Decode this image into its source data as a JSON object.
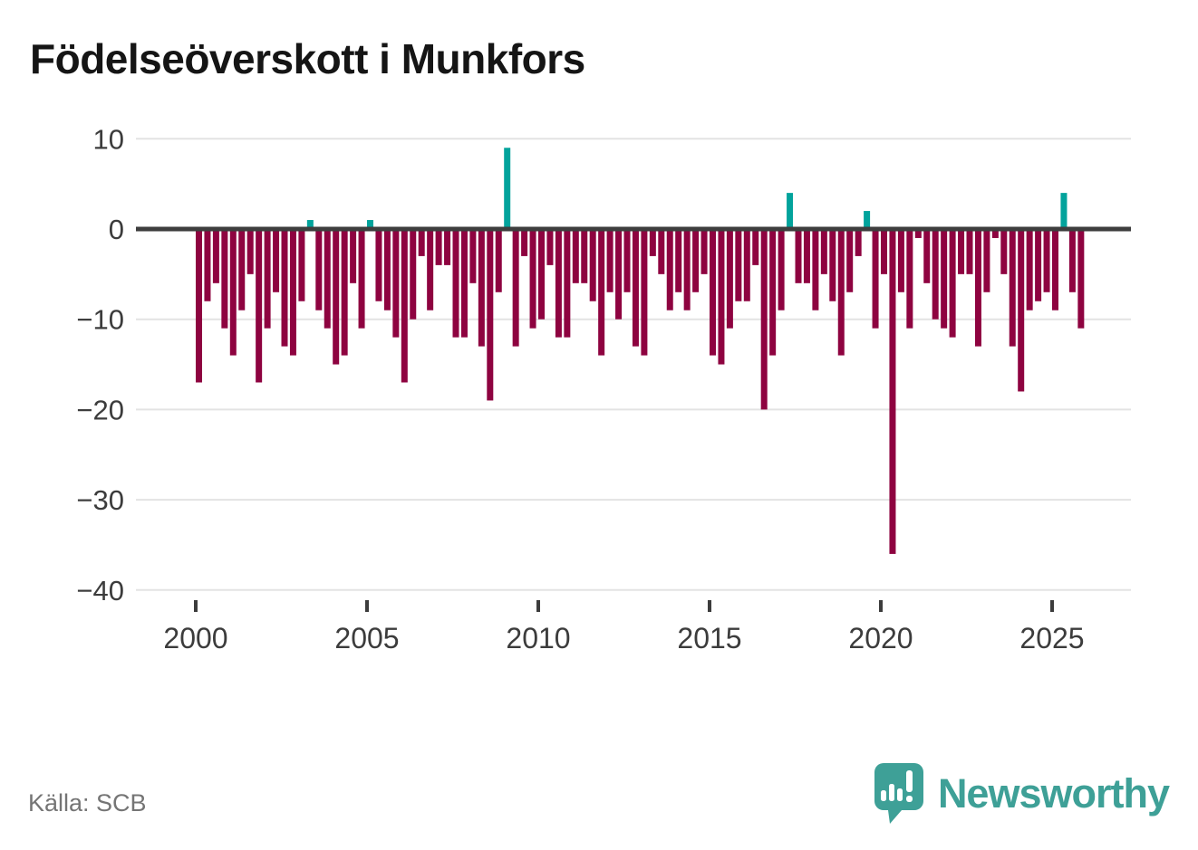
{
  "title": "Födelseöverskott i Munkfors",
  "source": {
    "label": "Källa: SCB"
  },
  "branding": {
    "wordmark": "Newsworthy"
  },
  "chart_data": {
    "type": "bar",
    "title": "Födelseöverskott i Munkfors",
    "frequency": "quarterly",
    "start_period": "2000-Q1",
    "end_period": "2025-Q4",
    "values": [
      -17,
      -8,
      -6,
      -11,
      -14,
      -9,
      -5,
      -17,
      -11,
      -7,
      -13,
      -14,
      -8,
      1,
      -9,
      -11,
      -15,
      -14,
      -6,
      -11,
      1,
      -8,
      -9,
      -12,
      -17,
      -10,
      -3,
      -9,
      -4,
      -4,
      -12,
      -12,
      -6,
      -13,
      -19,
      -7,
      9,
      -13,
      -3,
      -11,
      -10,
      -4,
      -12,
      -12,
      -6,
      -6,
      -8,
      -14,
      -7,
      -10,
      -7,
      -13,
      -14,
      -3,
      -5,
      -9,
      -7,
      -9,
      -7,
      -5,
      -14,
      -15,
      -11,
      -8,
      -8,
      -4,
      -20,
      -14,
      -9,
      4,
      -6,
      -6,
      -9,
      -5,
      -8,
      -14,
      -7,
      -3,
      2,
      -11,
      -5,
      -36,
      -7,
      -11,
      -1,
      -6,
      -10,
      -11,
      -12,
      -5,
      -5,
      -13,
      -7,
      -1,
      -5,
      -13,
      -18,
      -9,
      -8,
      -7,
      -9,
      4,
      -7,
      -11
    ],
    "y_ticks": [
      {
        "value": 10,
        "label": "10"
      },
      {
        "value": 0,
        "label": "0"
      },
      {
        "value": -10,
        "label": "−10"
      },
      {
        "value": -20,
        "label": "−20"
      },
      {
        "value": -30,
        "label": "−30"
      },
      {
        "value": -40,
        "label": "−40"
      }
    ],
    "x_ticks": [
      {
        "year": 2000,
        "label": "2000"
      },
      {
        "year": 2005,
        "label": "2005"
      },
      {
        "year": 2010,
        "label": "2010"
      },
      {
        "year": 2015,
        "label": "2015"
      },
      {
        "year": 2020,
        "label": "2020"
      },
      {
        "year": 2025,
        "label": "2025"
      }
    ],
    "ylim": [
      -40,
      10
    ],
    "grid": true,
    "legend_position": "none",
    "colors": {
      "positive": "#02a39c",
      "negative": "#8e0340"
    }
  }
}
